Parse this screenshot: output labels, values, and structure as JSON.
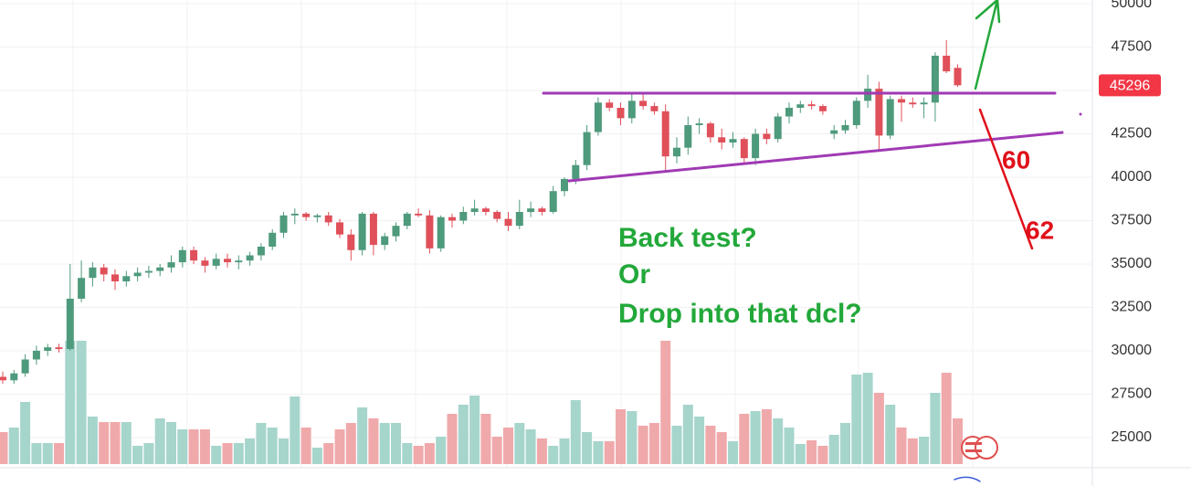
{
  "chart_data": {
    "type": "candlestick",
    "open": [
      28500,
      28300,
      28700,
      29500,
      30000,
      30200,
      30100,
      33000,
      34200,
      34800,
      34400,
      34000,
      34300,
      34500,
      34600,
      34800,
      35100,
      35800,
      35200,
      34900,
      35300,
      35100,
      35200,
      35500,
      36000,
      36800,
      37800,
      37900,
      37700,
      37800,
      37400,
      36700,
      35800,
      37900,
      36100,
      36600,
      37200,
      37900,
      37800,
      35900,
      37700,
      37500,
      38000,
      38200,
      38000,
      37600,
      37200,
      38000,
      38200,
      38000,
      39200,
      39900,
      40700,
      42600,
      44300,
      44000,
      43400,
      44400,
      44100,
      43800,
      41200,
      41700,
      43000,
      43100,
      42300,
      42000,
      42200,
      41100,
      42500,
      42200,
      43500,
      44000,
      44200,
      44100,
      42500,
      42700,
      43000,
      44400,
      45100,
      42400,
      44500,
      44300,
      44200,
      44300,
      47000,
      46300
    ],
    "high": [
      28800,
      28900,
      29800,
      30300,
      30400,
      30400,
      35000,
      35200,
      35100,
      35000,
      34700,
      34600,
      34800,
      34900,
      35000,
      35500,
      36000,
      36000,
      35400,
      35600,
      35600,
      35500,
      35700,
      36200,
      37000,
      38000,
      38200,
      38000,
      37900,
      38000,
      37600,
      37000,
      38000,
      38000,
      36800,
      37400,
      38000,
      38200,
      38100,
      37800,
      37900,
      38300,
      38700,
      38300,
      38100,
      38000,
      38700,
      38600,
      38300,
      39500,
      40000,
      41000,
      43000,
      44600,
      44500,
      44300,
      44800,
      44900,
      44300,
      44200,
      42300,
      43500,
      43400,
      43200,
      42800,
      42600,
      42300,
      42800,
      42800,
      43700,
      44300,
      44400,
      44400,
      44200,
      43000,
      43300,
      44600,
      45900,
      45500,
      44700,
      44700,
      44600,
      44600,
      47200,
      47900,
      46500
    ],
    "low": [
      28100,
      28100,
      28500,
      29200,
      29700,
      29900,
      30000,
      32800,
      33700,
      34000,
      33500,
      33700,
      34000,
      34200,
      34300,
      34500,
      34800,
      35000,
      34500,
      34700,
      34800,
      34700,
      34900,
      35200,
      35800,
      36500,
      37300,
      37500,
      37400,
      37200,
      36500,
      35200,
      35500,
      35500,
      35800,
      36300,
      37000,
      37700,
      35600,
      35700,
      37100,
      37300,
      37800,
      37800,
      37400,
      36900,
      37000,
      37700,
      37800,
      37900,
      38900,
      39600,
      40400,
      42400,
      43800,
      43000,
      43100,
      43900,
      43600,
      40300,
      40800,
      41300,
      42500,
      42000,
      41600,
      41700,
      40800,
      40700,
      41900,
      42000,
      43100,
      43700,
      43900,
      43600,
      42200,
      42500,
      42800,
      44000,
      41500,
      42200,
      43200,
      44000,
      43400,
      43200,
      46000,
      45200
    ],
    "close": [
      28300,
      28700,
      29500,
      30000,
      30200,
      30100,
      33000,
      34200,
      34800,
      34400,
      34000,
      34300,
      34500,
      34600,
      34800,
      35100,
      35800,
      35200,
      34900,
      35300,
      35100,
      35200,
      35500,
      36000,
      36800,
      37800,
      37900,
      37700,
      37800,
      37400,
      36700,
      35800,
      37900,
      36100,
      36600,
      37200,
      37900,
      37800,
      35900,
      37700,
      37500,
      38000,
      38200,
      38000,
      37600,
      37200,
      38000,
      38200,
      38000,
      39200,
      39900,
      40700,
      42600,
      44300,
      44000,
      43400,
      44400,
      44100,
      43800,
      41200,
      41700,
      43000,
      43100,
      42300,
      42000,
      42200,
      41100,
      42500,
      42200,
      43500,
      44000,
      44200,
      44100,
      43800,
      42700,
      43000,
      44400,
      45100,
      42400,
      44500,
      44300,
      44200,
      44300,
      47000,
      46100,
      45296
    ],
    "volume": [
      35,
      40,
      68,
      23,
      23,
      23,
      135,
      135,
      52,
      46,
      46,
      46,
      20,
      23,
      50,
      46,
      38,
      38,
      38,
      20,
      23,
      23,
      28,
      45,
      40,
      28,
      74,
      40,
      18,
      23,
      38,
      45,
      62,
      50,
      45,
      45,
      23,
      20,
      23,
      30,
      55,
      65,
      75,
      55,
      30,
      40,
      45,
      38,
      28,
      20,
      28,
      70,
      35,
      25,
      25,
      60,
      58,
      42,
      45,
      135,
      42,
      65,
      52,
      42,
      35,
      25,
      55,
      58,
      60,
      50,
      40,
      22,
      26,
      20,
      32,
      45,
      98,
      100,
      78,
      65,
      40,
      28,
      30,
      78,
      100,
      50
    ],
    "ylim": [
      23263,
      50210
    ],
    "yticks": [
      25000,
      27500,
      30000,
      32500,
      35000,
      37500,
      40000,
      42500,
      45000,
      47500,
      50000
    ],
    "grid": true,
    "up_color": "#4e9a7c",
    "down_color": "#e0505a",
    "up_volume_color": "#a6d5cc",
    "down_volume_color": "#f0a9ab",
    "last_price": 45296,
    "last_price_color": "#f23645",
    "annotations": [
      "Back test?",
      "Or",
      "Drop into that dcl?"
    ],
    "annotation_color": "#22a83a",
    "line_labels": [
      "60",
      "62"
    ],
    "line_label_color": "#e0101a"
  }
}
